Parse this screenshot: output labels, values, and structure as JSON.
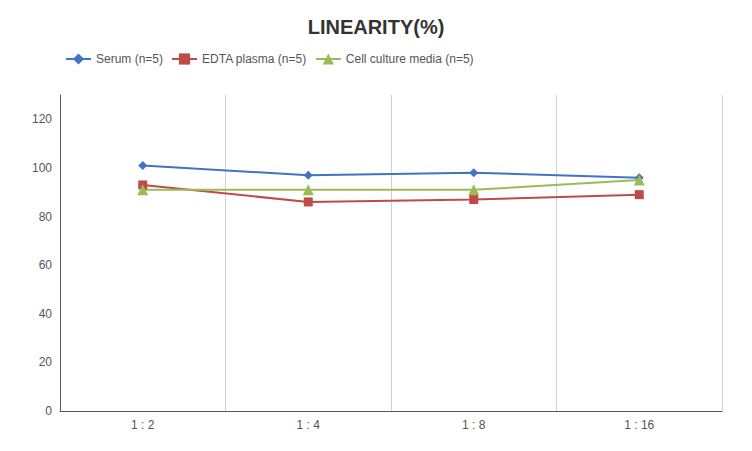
{
  "chart_data": {
    "type": "line",
    "title": "LINEARITY(%)",
    "categories": [
      "1 : 2",
      "1 : 4",
      "1 : 8",
      "1 : 16"
    ],
    "series": [
      {
        "name": "Serum (n=5)",
        "color": "#4472C4",
        "marker": "diamond",
        "values": [
          101,
          97,
          98,
          96
        ]
      },
      {
        "name": "EDTA plasma (n=5)",
        "color": "#BE4B48",
        "marker": "square",
        "values": [
          93,
          86,
          87,
          89
        ]
      },
      {
        "name": "Cell culture media (n=5)",
        "color": "#9BBB59",
        "marker": "triangle",
        "values": [
          91,
          91,
          91,
          95
        ]
      }
    ],
    "ylim": [
      0,
      130
    ],
    "yticks": [
      0,
      20,
      40,
      60,
      80,
      100,
      120
    ],
    "grid": "x",
    "legend": "upper left"
  }
}
